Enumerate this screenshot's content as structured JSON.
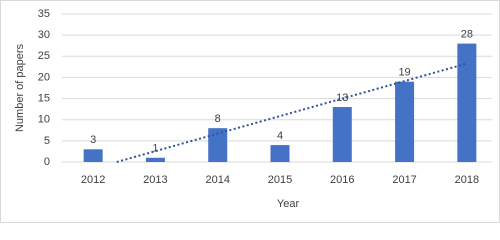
{
  "chart_data": {
    "type": "bar",
    "categories": [
      "2012",
      "2013",
      "2014",
      "2015",
      "2016",
      "2017",
      "2018"
    ],
    "values": [
      3,
      1,
      8,
      4,
      13,
      19,
      28
    ],
    "color": "#4472c4",
    "xlabel": "Year",
    "ylabel": "Number of papers",
    "ylim": [
      0,
      35
    ],
    "yticks": [
      0,
      5,
      10,
      15,
      20,
      25,
      30,
      35
    ],
    "grid": true,
    "data_labels": true,
    "trendline": {
      "type": "linear",
      "color": "#2f5597"
    }
  }
}
